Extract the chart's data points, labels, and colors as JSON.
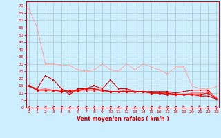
{
  "title": "",
  "xlabel": "Vent moyen/en rafales ( km/h )",
  "bg_color": "#cceeff",
  "grid_color": "#aacccc",
  "x_ticks": [
    0,
    1,
    2,
    3,
    4,
    5,
    6,
    7,
    8,
    9,
    10,
    11,
    12,
    13,
    14,
    15,
    16,
    17,
    18,
    19,
    20,
    21,
    22,
    23
  ],
  "y_ticks": [
    0,
    5,
    10,
    15,
    20,
    25,
    30,
    35,
    40,
    45,
    50,
    55,
    60,
    65,
    70
  ],
  "ylim": [
    0,
    73
  ],
  "xlim": [
    -0.3,
    23.3
  ],
  "line1_x": [
    0,
    1,
    2,
    3,
    4,
    5,
    6,
    7,
    8,
    9,
    10,
    11,
    12,
    13,
    14,
    15,
    16,
    17,
    18,
    19,
    20,
    21,
    22,
    23
  ],
  "line1_y": [
    68,
    55,
    30,
    30,
    29,
    29,
    26,
    25,
    26,
    30,
    26,
    25,
    30,
    26,
    30,
    28,
    26,
    23,
    28,
    28,
    15,
    13,
    13,
    14
  ],
  "line1_color": "#ffaaaa",
  "line2_x": [
    0,
    1,
    2,
    3,
    4,
    5,
    6,
    7,
    8,
    9,
    10,
    11,
    12,
    13,
    14,
    15,
    16,
    17,
    18,
    19,
    20,
    21,
    22,
    23
  ],
  "line2_y": [
    15,
    13,
    22,
    19,
    13,
    9,
    13,
    13,
    15,
    13,
    19,
    13,
    13,
    11,
    11,
    11,
    11,
    11,
    10,
    11,
    12,
    12,
    12,
    6
  ],
  "line2_color": "#cc0000",
  "line3_x": [
    0,
    1,
    2,
    3,
    4,
    5,
    6,
    7,
    8,
    9,
    10,
    11,
    12,
    13,
    14,
    15,
    16,
    17,
    18,
    19,
    20,
    21,
    22,
    23
  ],
  "line3_y": [
    15,
    12,
    13,
    12,
    12,
    11,
    11,
    13,
    13,
    11,
    11,
    11,
    12,
    11,
    11,
    10,
    10,
    10,
    9,
    9,
    10,
    10,
    11,
    7
  ],
  "line3_color": "#ff6666",
  "line4_x": [
    0,
    1,
    2,
    3,
    4,
    5,
    6,
    7,
    8,
    9,
    10,
    11,
    12,
    13,
    14,
    15,
    16,
    17,
    18,
    19,
    20,
    21,
    22,
    23
  ],
  "line4_y": [
    15,
    12,
    12,
    12,
    11,
    12,
    12,
    13,
    13,
    12,
    11,
    11,
    11,
    11,
    11,
    10,
    10,
    10,
    9,
    9,
    9,
    9,
    10,
    6
  ],
  "line4_color": "#ff0000",
  "line5_x": [
    0,
    1,
    2,
    3,
    4,
    5,
    6,
    7,
    8,
    9,
    10,
    11,
    12,
    13,
    14,
    15,
    16,
    17,
    18,
    19,
    20,
    21,
    22,
    23
  ],
  "line5_y": [
    15,
    12,
    12,
    12,
    12,
    11,
    12,
    12,
    12,
    12,
    11,
    11,
    11,
    11,
    11,
    10,
    10,
    9,
    9,
    9,
    9,
    8,
    8,
    6
  ],
  "line5_color": "#dd0000",
  "arrow_color": "#cc0000",
  "arrow_dirs": [
    0,
    0,
    0,
    0,
    0,
    0,
    0,
    0,
    0,
    0,
    0,
    0,
    0,
    0,
    0,
    0,
    0,
    -30,
    -30,
    -45,
    -45,
    -60,
    -150,
    -170
  ]
}
